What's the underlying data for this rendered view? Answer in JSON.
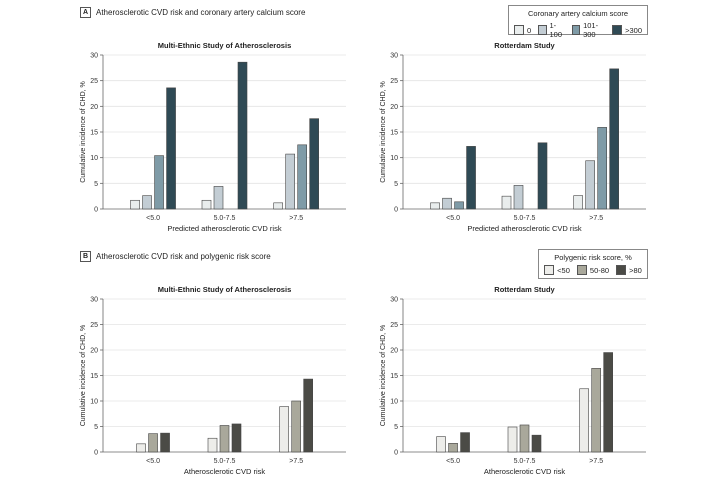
{
  "panel_a": {
    "letter": "A",
    "heading": "Atherosclerotic CVD risk and coronary artery calcium score",
    "legend": {
      "title": "Coronary artery calcium score",
      "items": [
        {
          "label": "0",
          "color": "#e9eded"
        },
        {
          "label": "1-100",
          "color": "#c3cdd4"
        },
        {
          "label": "101-300",
          "color": "#7f9ba7"
        },
        {
          "label": ">300",
          "color": "#2f4a55"
        }
      ]
    }
  },
  "panel_b": {
    "letter": "B",
    "heading": "Atherosclerotic CVD risk and polygenic risk score",
    "legend": {
      "title": "Polygenic risk score, %",
      "items": [
        {
          "label": "<50",
          "color": "#ededea"
        },
        {
          "label": "50-80",
          "color": "#a9a89b"
        },
        {
          "label": ">80",
          "color": "#4b4b46"
        }
      ]
    }
  },
  "chart_data": [
    {
      "type": "bar",
      "panel": "A",
      "title": "Multi-Ethnic Study of Atherosclerosis",
      "xlabel": "Predicted atherosclerotic CVD risk",
      "ylabel": "Cumulative incidence of CHD, %",
      "ylim": [
        0,
        30
      ],
      "yticks": [
        0,
        5,
        10,
        15,
        20,
        25,
        30
      ],
      "grid": true,
      "categories": [
        "<5.0",
        "5.0-7.5",
        ">7.5"
      ],
      "series": [
        {
          "name": "0",
          "values": [
            1.7,
            1.7,
            1.2
          ]
        },
        {
          "name": "1-100",
          "values": [
            2.6,
            4.4,
            10.7
          ]
        },
        {
          "name": "101-300",
          "values": [
            10.4,
            null,
            12.5
          ]
        },
        {
          "name": ">300",
          "values": [
            23.6,
            28.6,
            17.6
          ]
        }
      ]
    },
    {
      "type": "bar",
      "panel": "A",
      "title": "Rotterdam Study",
      "xlabel": "Predicted atherosclerotic CVD risk",
      "ylabel": "Cumulative incidence of CHD, %",
      "ylim": [
        0,
        30
      ],
      "yticks": [
        0,
        5,
        10,
        15,
        20,
        25,
        30
      ],
      "grid": true,
      "categories": [
        "<5.0",
        "5.0-7.5",
        ">7.5"
      ],
      "series": [
        {
          "name": "0",
          "values": [
            1.2,
            2.5,
            2.6
          ]
        },
        {
          "name": "1-100",
          "values": [
            2.1,
            4.6,
            9.4
          ]
        },
        {
          "name": "101-300",
          "values": [
            1.4,
            null,
            15.9
          ]
        },
        {
          "name": ">300",
          "values": [
            12.2,
            12.9,
            27.3
          ]
        }
      ]
    },
    {
      "type": "bar",
      "panel": "B",
      "title": "Multi-Ethnic Study of Atherosclerosis",
      "xlabel": "Atherosclerotic CVD risk",
      "ylabel": "Cumulative incidence of CHD, %",
      "ylim": [
        0,
        30
      ],
      "yticks": [
        0,
        5,
        10,
        15,
        20,
        25,
        30
      ],
      "grid": true,
      "categories": [
        "<5.0",
        "5.0-7.5",
        ">7.5"
      ],
      "series": [
        {
          "name": "<50",
          "values": [
            1.6,
            2.7,
            8.9
          ]
        },
        {
          "name": "50-80",
          "values": [
            3.6,
            5.2,
            10.0
          ]
        },
        {
          "name": ">80",
          "values": [
            3.7,
            5.5,
            14.3
          ]
        }
      ]
    },
    {
      "type": "bar",
      "panel": "B",
      "title": "Rotterdam Study",
      "xlabel": "Atherosclerotic CVD risk",
      "ylabel": "Cumulative incidence of CHD, %",
      "ylim": [
        0,
        30
      ],
      "yticks": [
        0,
        5,
        10,
        15,
        20,
        25,
        30
      ],
      "grid": true,
      "categories": [
        "<5.0",
        "5.0-7.5",
        ">7.5"
      ],
      "series": [
        {
          "name": "<50",
          "values": [
            3.0,
            4.9,
            12.4
          ]
        },
        {
          "name": "50-80",
          "values": [
            1.7,
            5.3,
            16.4
          ]
        },
        {
          "name": ">80",
          "values": [
            3.8,
            3.3,
            19.5
          ]
        }
      ]
    }
  ]
}
